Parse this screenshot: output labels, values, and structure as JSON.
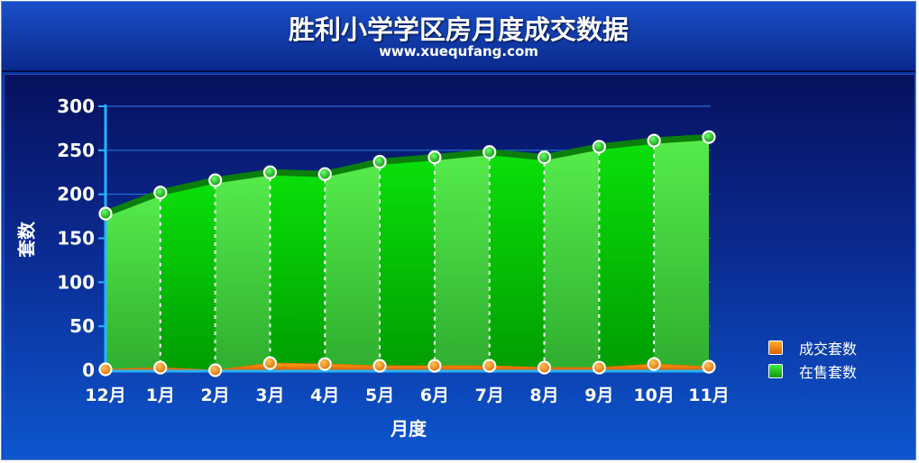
{
  "header": {
    "title": "胜利小学学区房月度成交数据",
    "subtitle": "www.xuequfang.com"
  },
  "chart_data": {
    "type": "area",
    "title": "胜利小学学区房月度成交数据",
    "subtitle": "www.xuequfang.com",
    "xlabel": "月度",
    "ylabel": "套数",
    "ylim": [
      0,
      300
    ],
    "yticks": [
      0,
      50,
      100,
      150,
      200,
      250,
      300
    ],
    "grid": true,
    "legend_position": "bottom-right",
    "categories": [
      "12月",
      "1月",
      "2月",
      "3月",
      "4月",
      "5月",
      "6月",
      "7月",
      "8月",
      "9月",
      "10月",
      "11月"
    ],
    "series": [
      {
        "name": "在售套数",
        "color": "#11c311",
        "values": [
          178,
          202,
          216,
          225,
          223,
          237,
          242,
          248,
          242,
          254,
          261,
          265
        ]
      },
      {
        "name": "成交套数",
        "color": "#f07c00",
        "values": [
          1,
          3,
          0,
          8,
          7,
          5,
          5,
          5,
          3,
          3,
          7,
          4
        ]
      }
    ]
  },
  "legend": {
    "items": [
      {
        "label": "成交套数",
        "color": "#f07c00"
      },
      {
        "label": "在售套数",
        "color": "#11c311"
      }
    ]
  }
}
